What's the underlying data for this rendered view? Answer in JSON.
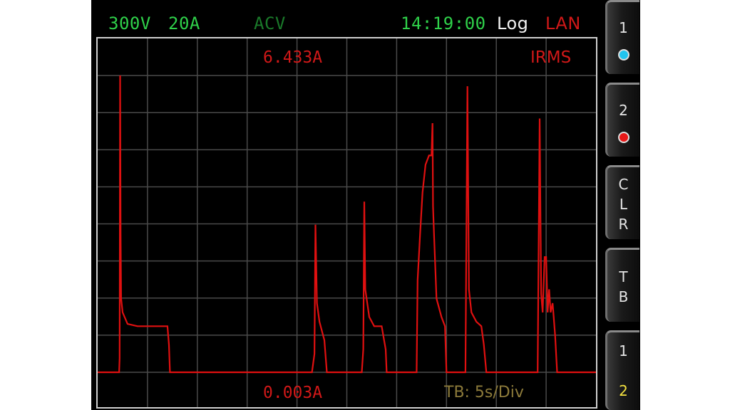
{
  "status_bar": {
    "range_voltage": "300V",
    "range_current": "20A",
    "mode": "ACV",
    "time": "14:19:00",
    "log": "Log",
    "interface": "LAN",
    "colors": {
      "range": "#2fd14a",
      "mode": "#1a7a2a",
      "time": "#2fd14a",
      "log": "#f2f2f2",
      "interface": "#d01818"
    }
  },
  "plot": {
    "max_label": "6.433A",
    "min_label": "0.003A",
    "measurement": "IRMS",
    "timebase": "TB: 5s/Div",
    "trace_color": "#e01010",
    "grid_color": "#4a4a4a",
    "max_value_a": 6.433,
    "min_value_a": 0.003,
    "grid_divisions_x": 10,
    "grid_divisions_y": 8,
    "trace": [
      [
        0,
        0.003
      ],
      [
        0.43,
        0.003
      ],
      [
        0.44,
        0.3
      ],
      [
        0.45,
        6.433
      ],
      [
        0.46,
        3.0
      ],
      [
        0.47,
        1.6
      ],
      [
        0.5,
        1.3
      ],
      [
        0.6,
        1.05
      ],
      [
        0.8,
        1.0
      ],
      [
        1.3,
        1.0
      ],
      [
        1.4,
        1.0
      ],
      [
        1.43,
        0.6
      ],
      [
        1.45,
        0.003
      ],
      [
        4.3,
        0.003
      ],
      [
        4.35,
        0.4
      ],
      [
        4.37,
        3.2
      ],
      [
        4.4,
        1.5
      ],
      [
        4.45,
        1.1
      ],
      [
        4.55,
        0.7
      ],
      [
        4.6,
        0.003
      ],
      [
        5.3,
        0.003
      ],
      [
        5.33,
        0.5
      ],
      [
        5.35,
        3.7
      ],
      [
        5.37,
        1.8
      ],
      [
        5.45,
        1.2
      ],
      [
        5.55,
        1.0
      ],
      [
        5.7,
        1.0
      ],
      [
        5.78,
        0.5
      ],
      [
        5.8,
        0.003
      ],
      [
        6.4,
        0.003
      ],
      [
        6.42,
        2.0
      ],
      [
        6.47,
        3.0
      ],
      [
        6.52,
        3.9
      ],
      [
        6.58,
        4.5
      ],
      [
        6.65,
        4.7
      ],
      [
        6.7,
        4.7
      ],
      [
        6.72,
        5.4
      ],
      [
        6.73,
        3.6
      ],
      [
        6.75,
        3.0
      ],
      [
        6.8,
        1.6
      ],
      [
        6.9,
        1.2
      ],
      [
        6.97,
        1.0
      ],
      [
        7.0,
        0.003
      ],
      [
        7.38,
        0.003
      ],
      [
        7.42,
        6.2
      ],
      [
        7.45,
        1.8
      ],
      [
        7.5,
        1.3
      ],
      [
        7.6,
        1.1
      ],
      [
        7.7,
        1.0
      ],
      [
        7.75,
        0.6
      ],
      [
        7.8,
        0.003
      ],
      [
        8.83,
        0.003
      ],
      [
        8.87,
        5.5
      ],
      [
        8.9,
        1.7
      ],
      [
        8.93,
        1.3
      ],
      [
        8.97,
        2.5
      ],
      [
        9.0,
        2.5
      ],
      [
        9.03,
        1.3
      ],
      [
        9.06,
        1.8
      ],
      [
        9.09,
        1.3
      ],
      [
        9.13,
        1.5
      ],
      [
        9.18,
        0.8
      ],
      [
        9.22,
        0.003
      ],
      [
        10,
        0.003
      ]
    ]
  },
  "softkeys": [
    {
      "label": "1",
      "indicator": "cyan"
    },
    {
      "label": "2",
      "indicator": "red"
    },
    {
      "label": "CLR"
    },
    {
      "label": "TB"
    },
    {
      "label_top": "1",
      "label_bottom": "2"
    }
  ],
  "indicator_colors": {
    "cyan": "#22c4ee",
    "red": "#e81818"
  }
}
